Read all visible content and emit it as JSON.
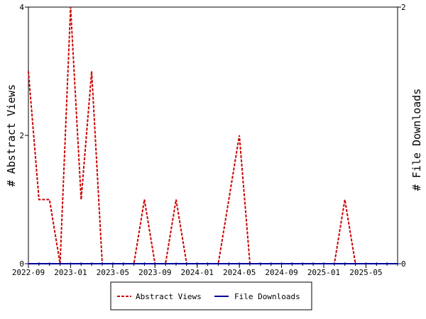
{
  "chart_data": {
    "type": "line",
    "x": [
      "2022-09",
      "2022-10",
      "2022-11",
      "2022-12",
      "2023-01",
      "2023-02",
      "2023-03",
      "2023-04",
      "2023-05",
      "2023-06",
      "2023-07",
      "2023-08",
      "2023-09",
      "2023-10",
      "2023-11",
      "2023-12",
      "2024-01",
      "2024-02",
      "2024-03",
      "2024-04",
      "2024-05",
      "2024-06",
      "2024-07",
      "2024-08",
      "2024-09",
      "2024-10",
      "2024-11",
      "2024-12",
      "2025-01",
      "2025-02",
      "2025-03",
      "2025-04",
      "2025-05",
      "2025-06",
      "2025-07",
      "2025-08"
    ],
    "series": [
      {
        "name": "Abstract Views",
        "axis": "left",
        "color": "#cc0000",
        "dash": "4,2",
        "values": [
          3,
          1,
          1,
          0,
          4,
          1,
          3,
          0,
          0,
          0,
          0,
          1,
          0,
          0,
          1,
          0,
          0,
          0,
          0,
          1,
          2,
          0,
          0,
          0,
          0,
          0,
          0,
          0,
          0,
          0,
          1,
          0,
          0,
          0,
          0,
          0
        ]
      },
      {
        "name": "File Downloads",
        "axis": "right",
        "color": "#000099",
        "dash": "",
        "values": [
          0,
          0,
          0,
          0,
          0,
          0,
          0,
          0,
          0,
          0,
          0,
          0,
          0,
          0,
          0,
          0,
          0,
          0,
          0,
          0,
          0,
          0,
          0,
          0,
          0,
          0,
          0,
          0,
          0,
          0,
          0,
          0,
          0,
          0,
          0,
          0
        ]
      }
    ],
    "x_ticks": [
      "2022-09",
      "2023-01",
      "2023-05",
      "2023-09",
      "2024-01",
      "2024-05",
      "2024-09",
      "2025-01",
      "2025-05"
    ],
    "ylabel": "# Abstract Views",
    "y2label": "# File Downloads",
    "ylim": [
      0,
      4
    ],
    "y_ticks": [
      "0",
      "2",
      "4"
    ],
    "y2lim": [
      0,
      2
    ],
    "y2_ticks": [
      "0",
      "2"
    ],
    "legend_placement": "bottom-center",
    "grid": false
  }
}
